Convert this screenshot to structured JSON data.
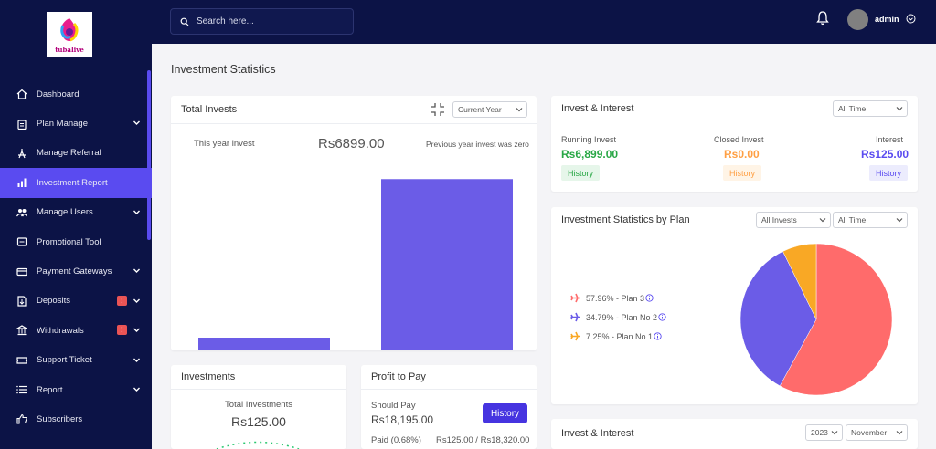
{
  "brand": {
    "logo_text": "tubalive"
  },
  "sidebar": {
    "items": [
      {
        "label": "Dashboard",
        "icon": "home-icon"
      },
      {
        "label": "Plan Manage",
        "icon": "clipboard-icon",
        "chevron": true
      },
      {
        "label": "Manage Referral",
        "icon": "referral-icon"
      },
      {
        "label": "Investment Report",
        "icon": "bar-chart-icon",
        "active": true
      },
      {
        "label": "Manage Users",
        "icon": "users-icon",
        "chevron": true
      },
      {
        "label": "Promotional Tool",
        "icon": "tool-icon"
      },
      {
        "label": "Payment Gateways",
        "icon": "credit-card-icon",
        "chevron": true
      },
      {
        "label": "Deposits",
        "icon": "deposit-icon",
        "chevron": true,
        "badge": "!"
      },
      {
        "label": "Withdrawals",
        "icon": "bank-icon",
        "chevron": true,
        "badge": "!"
      },
      {
        "label": "Support Ticket",
        "icon": "ticket-icon",
        "chevron": true
      },
      {
        "label": "Report",
        "icon": "list-icon",
        "chevron": true
      },
      {
        "label": "Subscribers",
        "icon": "thumbs-up-icon"
      }
    ]
  },
  "header": {
    "search_placeholder": "Search here...",
    "username": "admin"
  },
  "page": {
    "title": "Investment Statistics"
  },
  "total_invests": {
    "title": "Total Invests",
    "period_select": "Current Year",
    "this_year_label": "This year invest",
    "this_year_value": "Rs6899.00",
    "previous_note": "Previous year invest was zero"
  },
  "invest_interest": {
    "title": "Invest & Interest",
    "period_select": "All Time",
    "running_label": "Running Invest",
    "running_value": "Rs6,899.00",
    "closed_label": "Closed Invest",
    "closed_value": "Rs0.00",
    "interest_label": "Interest",
    "interest_value": "Rs125.00",
    "history_label": "History"
  },
  "by_plan": {
    "title": "Investment Statistics by Plan",
    "filter_select": "All Invests",
    "period_select": "All Time",
    "legend": [
      {
        "label": "57.96% - Plan 3",
        "color": "#ff6b6b"
      },
      {
        "label": "34.79% - Plan No 2",
        "color": "#6b5ce7"
      },
      {
        "label": "7.25% - Plan No 1",
        "color": "#f9a825"
      }
    ]
  },
  "investments": {
    "title": "Investments",
    "total_label": "Total Investments",
    "total_value": "Rs125.00"
  },
  "profit": {
    "title": "Profit to Pay",
    "should_pay_label": "Should Pay",
    "should_pay_value": "Rs18,195.00",
    "history_button": "History",
    "paid_label": "Paid (0.68%)",
    "paid_value": "Rs125.00 / Rs18,320.00"
  },
  "invest_interest_2": {
    "title": "Invest & Interest",
    "year_select": "2023",
    "month_select": "November"
  },
  "chart_data": [
    {
      "type": "bar",
      "title": "Total Invests",
      "categories": [
        "",
        ""
      ],
      "values": [
        0,
        6899
      ],
      "colors": [
        "#6b5ce7"
      ]
    },
    {
      "type": "pie",
      "title": "Investment Statistics by Plan",
      "categories": [
        "Plan 3",
        "Plan No 2",
        "Plan No 1"
      ],
      "values": [
        57.96,
        34.79,
        7.25
      ],
      "colors": [
        "#ff6b6b",
        "#6b5ce7",
        "#f9a825"
      ]
    }
  ]
}
